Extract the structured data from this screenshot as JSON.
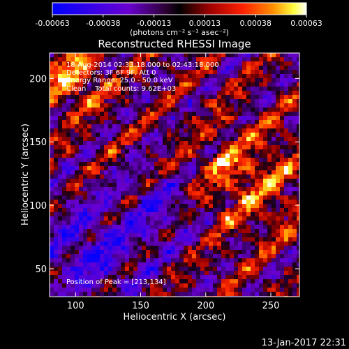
{
  "chart_data": {
    "type": "heatmap",
    "title": "Reconstructed RHESSI Image",
    "xlabel": "Heliocentric X (arcsec)",
    "ylabel": "Heliocentric Y (arcsec)",
    "xlim": [
      80,
      272
    ],
    "ylim": [
      28,
      220
    ],
    "x_ticks": [
      100,
      150,
      200,
      250
    ],
    "y_ticks": [
      50,
      100,
      150,
      200
    ],
    "annotations": [
      "18-Aug-2014 02:33:18.000 to 02:43:18.000",
      "Detectors: 3F 6F 9F, Att 0",
      "Energy Range: 25.0 - 50.0 keV",
      "Clean    Total counts: 9.62E+03"
    ],
    "peak_label": "Position of Peak = [213,134]",
    "peak": [
      213,
      134
    ],
    "colorbar": {
      "tick_labels": [
        "-0.00063",
        "-0.00038",
        "-0.00013",
        "0.00013",
        "0.00038",
        "0.00063"
      ],
      "range": [
        -0.00063,
        0.00063
      ],
      "units_label": "(photons cm⁻² s⁻¹ asec⁻²)",
      "colors": [
        "#0000ff",
        "#8000ff",
        "#300040",
        "#000000",
        "#800000",
        "#ff0000",
        "#ff8000",
        "#ffff00",
        "#ffffff"
      ]
    },
    "grid": false
  },
  "footer": {
    "date": "13-Jan-2017 22:31"
  }
}
